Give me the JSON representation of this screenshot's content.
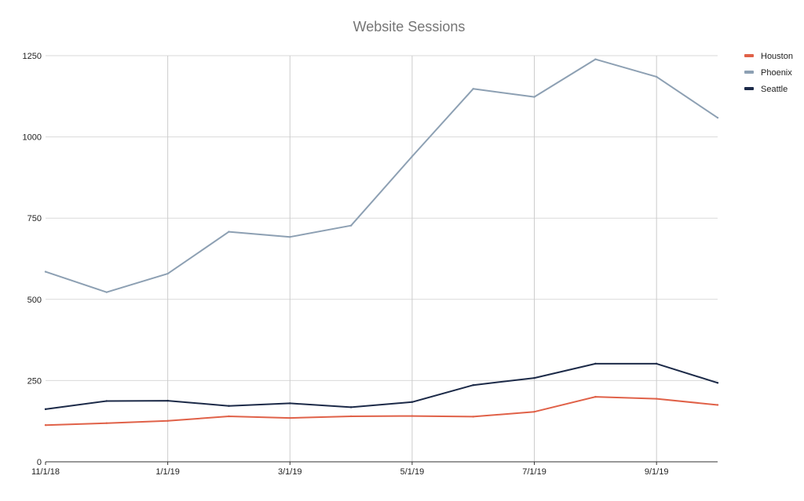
{
  "chart_data": {
    "type": "line",
    "title": "Website Sessions",
    "xlabel": "",
    "ylabel": "",
    "x": [
      "11/1/18",
      "12/1/18",
      "1/1/19",
      "2/1/19",
      "3/1/19",
      "4/1/19",
      "5/1/19",
      "6/1/19",
      "7/1/19",
      "8/1/19",
      "9/1/19",
      "10/1/19"
    ],
    "x_tick_labels": [
      "11/1/18",
      "1/1/19",
      "3/1/19",
      "5/1/19",
      "7/1/19",
      "9/1/19"
    ],
    "y_ticks": [
      0,
      250,
      500,
      750,
      1000,
      1250
    ],
    "ylim": [
      0,
      1250
    ],
    "grid": true,
    "legend_position": "right",
    "series": [
      {
        "name": "Houston",
        "color": "#e06148",
        "values": [
          113,
          119,
          126,
          140,
          135,
          140,
          141,
          139,
          154,
          200,
          194,
          175
        ]
      },
      {
        "name": "Phoenix",
        "color": "#8da0b3",
        "values": [
          585,
          522,
          579,
          708,
          692,
          727,
          940,
          1148,
          1123,
          1239,
          1185,
          1059
        ]
      },
      {
        "name": "Seattle",
        "color": "#1c2a48",
        "values": [
          162,
          187,
          188,
          172,
          180,
          168,
          184,
          236,
          258,
          302,
          302,
          243
        ]
      }
    ]
  }
}
